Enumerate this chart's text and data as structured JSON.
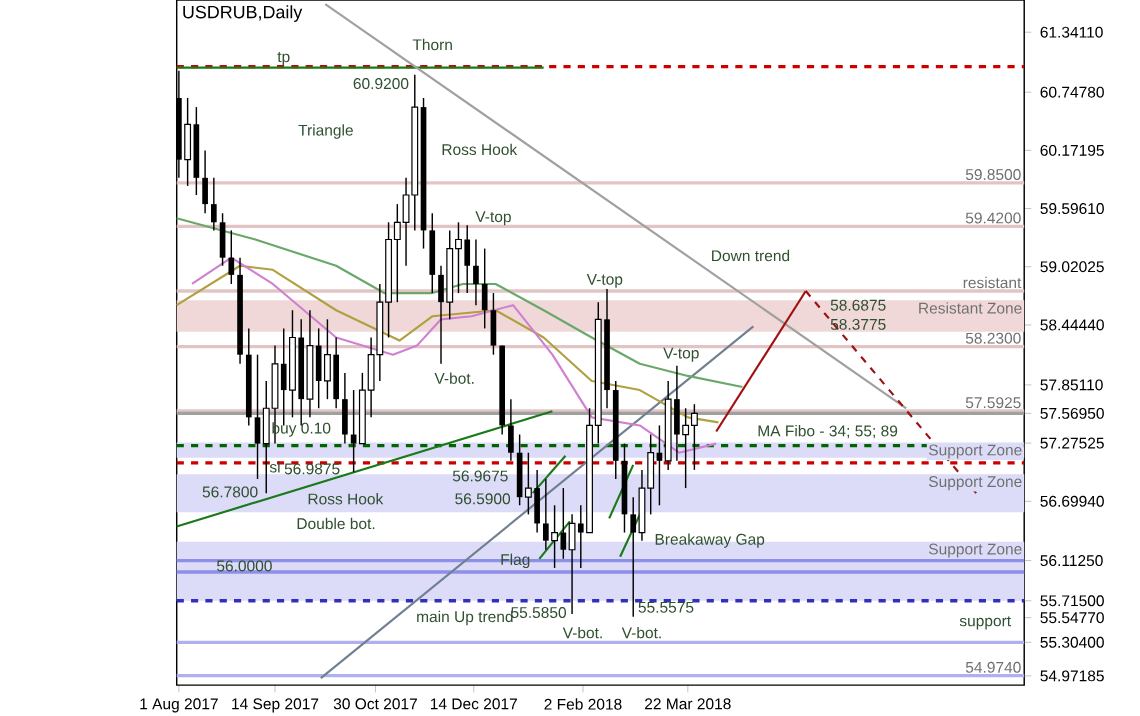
{
  "chart_data": {
    "type": "candlestick",
    "title": "USDRUB,Daily",
    "color": "#000000",
    "x": [
      "2017-08-01",
      "2017-08-05",
      "2017-08-09",
      "2017-08-13",
      "2017-08-17",
      "2017-08-21",
      "2017-08-25",
      "2017-08-29",
      "2017-09-02",
      "2017-09-06",
      "2017-09-10",
      "2017-09-14",
      "2017-09-18",
      "2017-09-22",
      "2017-09-26",
      "2017-09-30",
      "2017-10-04",
      "2017-10-08",
      "2017-10-12",
      "2017-10-16",
      "2017-10-20",
      "2017-10-24",
      "2017-10-28",
      "2017-11-01",
      "2017-11-05",
      "2017-11-09",
      "2017-11-13",
      "2017-11-17",
      "2017-11-21",
      "2017-11-25",
      "2017-11-29",
      "2017-12-03",
      "2017-12-07",
      "2017-12-11",
      "2017-12-15",
      "2017-12-19",
      "2017-12-23",
      "2017-12-27",
      "2017-12-31",
      "2018-01-04",
      "2018-01-08",
      "2018-01-12",
      "2018-01-16",
      "2018-01-20",
      "2018-01-24",
      "2018-01-28",
      "2018-02-01",
      "2018-02-05",
      "2018-02-09",
      "2018-02-13",
      "2018-02-17",
      "2018-02-21",
      "2018-02-25",
      "2018-03-01",
      "2018-03-05",
      "2018-03-09",
      "2018-03-13",
      "2018-03-17",
      "2018-03-21",
      "2018-03-25"
    ],
    "ohlc": [
      [
        60.69,
        60.96,
        59.9,
        60.08
      ],
      [
        60.08,
        60.69,
        59.82,
        60.43
      ],
      [
        60.43,
        60.6,
        59.73,
        59.9
      ],
      [
        59.9,
        60.17,
        59.55,
        59.64
      ],
      [
        59.64,
        59.9,
        59.38,
        59.46
      ],
      [
        59.46,
        59.55,
        59.03,
        59.11
      ],
      [
        59.11,
        59.38,
        58.85,
        58.94
      ],
      [
        58.94,
        59.11,
        58.06,
        58.15
      ],
      [
        58.15,
        58.41,
        57.45,
        57.53
      ],
      [
        57.53,
        58.15,
        56.92,
        57.27
      ],
      [
        57.27,
        57.89,
        56.78,
        57.62
      ],
      [
        57.62,
        58.24,
        57.27,
        58.06
      ],
      [
        58.06,
        58.41,
        57.45,
        57.8
      ],
      [
        57.8,
        58.59,
        57.53,
        58.32
      ],
      [
        58.32,
        58.5,
        57.45,
        57.71
      ],
      [
        57.71,
        58.59,
        57.53,
        58.24
      ],
      [
        58.24,
        58.41,
        57.62,
        57.89
      ],
      [
        57.89,
        58.5,
        57.71,
        58.15
      ],
      [
        58.15,
        58.32,
        57.62,
        57.71
      ],
      [
        57.71,
        57.97,
        57.27,
        57.36
      ],
      [
        57.36,
        57.8,
        56.9875,
        57.27
      ],
      [
        57.27,
        57.97,
        57.27,
        57.8
      ],
      [
        57.8,
        58.32,
        57.53,
        58.15
      ],
      [
        58.15,
        58.85,
        57.89,
        58.67
      ],
      [
        58.67,
        59.46,
        58.32,
        59.29
      ],
      [
        59.29,
        59.64,
        58.67,
        59.46
      ],
      [
        59.46,
        59.9,
        59.03,
        59.73
      ],
      [
        59.73,
        60.92,
        59.38,
        60.6
      ],
      [
        60.6,
        60.69,
        59.2,
        59.38
      ],
      [
        59.38,
        59.55,
        58.76,
        58.94
      ],
      [
        58.94,
        59.03,
        58.06,
        58.67
      ],
      [
        58.67,
        59.38,
        58.5,
        59.2
      ],
      [
        59.2,
        59.46,
        58.76,
        59.29
      ],
      [
        59.29,
        59.43,
        58.76,
        59.03
      ],
      [
        59.03,
        59.29,
        58.64,
        58.85
      ],
      [
        58.85,
        59.2,
        58.41,
        58.59
      ],
      [
        58.59,
        58.76,
        58.15,
        58.24
      ],
      [
        58.24,
        58.24,
        57.36,
        57.45
      ],
      [
        57.45,
        57.71,
        57.1,
        57.18
      ],
      [
        57.18,
        57.36,
        56.66,
        56.74
      ],
      [
        56.74,
        57.18,
        56.57,
        56.83
      ],
      [
        56.83,
        57.01,
        56.39,
        56.48
      ],
      [
        56.48,
        56.92,
        56.22,
        56.31
      ],
      [
        56.31,
        56.66,
        56.04,
        56.39
      ],
      [
        56.39,
        56.83,
        56.13,
        56.22
      ],
      [
        56.22,
        56.57,
        55.585,
        56.48
      ],
      [
        56.48,
        56.66,
        56.04,
        56.39
      ],
      [
        56.39,
        57.62,
        56.39,
        57.45
      ],
      [
        57.45,
        58.67,
        57.27,
        58.5
      ],
      [
        58.5,
        58.8,
        57.62,
        57.8
      ],
      [
        57.8,
        57.89,
        56.92,
        57.1
      ],
      [
        57.1,
        57.27,
        56.39,
        56.57
      ],
      [
        56.57,
        56.74,
        55.5575,
        56.39
      ],
      [
        56.39,
        57.01,
        56.31,
        56.83
      ],
      [
        56.83,
        57.36,
        56.57,
        57.18
      ],
      [
        57.18,
        57.45,
        56.66,
        57.1
      ],
      [
        57.1,
        57.89,
        57.01,
        57.71
      ],
      [
        57.71,
        58.04,
        57.1,
        57.36
      ],
      [
        57.36,
        57.62,
        56.83,
        57.45
      ],
      [
        57.45,
        57.66,
        57.01,
        57.57
      ]
    ],
    "xlim": [
      "2017-07-31",
      "2018-08-23"
    ],
    "xticks": [
      {
        "value": "2017-08-01",
        "label": "1 Aug 2017"
      },
      {
        "value": "2017-09-14",
        "label": "14 Sep 2017"
      },
      {
        "value": "2017-10-30",
        "label": "30 Oct 2017"
      },
      {
        "value": "2017-12-14",
        "label": "14 Dec 2017"
      },
      {
        "value": "2018-02-02",
        "label": "2 Feb 2018"
      },
      {
        "value": "2018-03-22",
        "label": "22 Mar 2018"
      }
    ],
    "ylim": [
      54.88,
      61.66
    ],
    "yticks": [
      {
        "value": 61.3411,
        "label": "61.34110"
      },
      {
        "value": 60.7478,
        "label": "60.74780"
      },
      {
        "value": 60.17195,
        "label": "60.17195"
      },
      {
        "value": 59.5961,
        "label": "59.59610"
      },
      {
        "value": 59.02025,
        "label": "59.02025"
      },
      {
        "value": 58.4444,
        "label": "58.44440"
      },
      {
        "value": 57.8511,
        "label": "57.85110"
      },
      {
        "value": 57.5695,
        "label": "57.56950"
      },
      {
        "value": 57.27525,
        "label": "57.27525"
      },
      {
        "value": 56.6994,
        "label": "56.69940"
      },
      {
        "value": 56.1125,
        "label": "56.11250"
      },
      {
        "value": 55.715,
        "label": "55.71500"
      },
      {
        "value": 55.5477,
        "label": "55.54770"
      },
      {
        "value": 55.304,
        "label": "55.30400"
      },
      {
        "value": 54.97185,
        "label": "54.97185"
      }
    ],
    "series": [
      {
        "type": "line",
        "x": [
          "2017-07-31",
          "2018-01-15"
        ],
        "values": [
          60.99,
          60.99
        ],
        "color": "#1a7a1a"
      },
      {
        "type": "line",
        "x": [
          "2017-10-07",
          "2018-06-30"
        ],
        "values": [
          61.62,
          57.62
        ],
        "color": "#a0a0a0"
      },
      {
        "type": "line",
        "x": [
          "2017-10-05",
          "2018-04-21"
        ],
        "values": [
          54.95,
          58.43
        ],
        "color": "#708090"
      },
      {
        "type": "line",
        "x": [
          "2017-07-31",
          "2018-01-19"
        ],
        "values": [
          56.45,
          57.59
        ],
        "color": "#1a7a1a"
      },
      {
        "type": "line",
        "x": [
          "2018-01-10",
          "2018-01-25"
        ],
        "values": [
          56.78,
          57.15
        ],
        "color": "#1a7a1a"
      },
      {
        "type": "line",
        "x": [
          "2018-01-13",
          "2018-01-27"
        ],
        "values": [
          56.13,
          56.5
        ],
        "color": "#1a7a1a"
      },
      {
        "type": "line",
        "x": [
          "2018-02-14",
          "2018-02-25"
        ],
        "values": [
          56.53,
          57.06
        ],
        "color": "#1a7a1a"
      },
      {
        "type": "line",
        "x": [
          "2018-02-19",
          "2018-03-02"
        ],
        "values": [
          56.15,
          56.66
        ],
        "color": "#1a7a1a"
      },
      {
        "type": "line",
        "x": [
          "2018-04-04",
          "2018-05-15"
        ],
        "values": [
          57.39,
          58.78
        ],
        "color": "#a01010"
      },
      {
        "type": "line",
        "x": [
          "2018-05-15",
          "2018-08-01"
        ],
        "values": [
          58.78,
          56.78
        ],
        "color": "#a01010",
        "line_style": "dashed"
      },
      {
        "type": "line",
        "x": [
          "2017-07-31",
          "2017-09-05",
          "2017-10-12",
          "2017-11-03",
          "2017-11-25",
          "2017-12-09",
          "2017-12-24",
          "2018-01-15",
          "2018-02-06",
          "2018-02-28",
          "2018-03-22",
          "2018-04-16"
        ],
        "values": [
          59.5,
          59.29,
          59.03,
          58.76,
          58.76,
          58.85,
          58.85,
          58.59,
          58.32,
          58.06,
          57.94,
          57.83
        ],
        "color": "#6aa86a"
      },
      {
        "type": "line",
        "x": [
          "2017-07-31",
          "2017-08-29",
          "2017-09-13",
          "2017-10-12",
          "2017-11-10",
          "2017-11-25",
          "2017-12-24",
          "2018-01-15",
          "2018-02-06",
          "2018-02-28",
          "2018-03-22",
          "2018-04-05"
        ],
        "values": [
          58.64,
          59.03,
          58.99,
          58.59,
          58.29,
          58.53,
          58.59,
          58.32,
          57.89,
          57.8,
          57.53,
          57.48
        ],
        "color": "#b0a040"
      },
      {
        "type": "line",
        "x": [
          "2017-08-07",
          "2017-08-25",
          "2017-09-13",
          "2017-10-12",
          "2017-11-07",
          "2017-11-18",
          "2017-11-29",
          "2017-12-13",
          "2018-01-01",
          "2018-01-19",
          "2018-02-06",
          "2018-02-28",
          "2018-03-18",
          "2018-04-04"
        ],
        "values": [
          58.85,
          59.11,
          58.85,
          58.32,
          58.15,
          58.24,
          58.5,
          58.53,
          58.64,
          58.15,
          57.53,
          57.45,
          57.18,
          57.27
        ],
        "color": "#d080d0"
      }
    ],
    "bands": [
      {
        "axis": "y",
        "from": 58.3775,
        "to": 58.6875,
        "label": "Resistant Zone",
        "color": "#f0d8d8"
      },
      {
        "axis": "y",
        "from": 57.13,
        "to": 57.28,
        "label": "Support Zone",
        "color": "#dcdcf8"
      },
      {
        "axis": "y",
        "from": 56.59,
        "to": 56.9675,
        "label": "Support Zone",
        "color": "#dcdcf8"
      },
      {
        "axis": "y",
        "from": 55.715,
        "to": 56.3,
        "label": "Support Zone",
        "color": "#dcdcf8"
      }
    ],
    "ref_lines": [
      {
        "axis": "y",
        "value": 61.0,
        "color": "#cc0000",
        "line_style": "dashed"
      },
      {
        "axis": "y",
        "value": 59.85,
        "label": "59.8500",
        "color": "#e3c4c4"
      },
      {
        "axis": "y",
        "value": 59.42,
        "label": "59.4200",
        "color": "#e3c4c4"
      },
      {
        "axis": "y",
        "value": 58.78,
        "label": "resistant",
        "color": "#e3c4c4"
      },
      {
        "axis": "y",
        "value": 58.23,
        "label": "58.2300",
        "color": "#e3c4c4"
      },
      {
        "axis": "y",
        "value": 57.5925,
        "label": "57.5925",
        "color": "#e3c4c4"
      },
      {
        "axis": "y",
        "value": 57.5695,
        "color": "#a0a0a0"
      },
      {
        "axis": "y",
        "value": 57.25,
        "color": "#006400",
        "line_style": "dashed"
      },
      {
        "axis": "y",
        "value": 57.08,
        "color": "#cc0000",
        "line_style": "dashed"
      },
      {
        "axis": "y",
        "value": 56.1125,
        "color": "#8f8fe8"
      },
      {
        "axis": "y",
        "value": 56.0,
        "color": "#8f8fe8"
      },
      {
        "axis": "y",
        "value": 55.715,
        "color": "#3030c0",
        "line_style": "dashed"
      },
      {
        "axis": "y",
        "value": 55.304,
        "color": "#b0b0f0"
      },
      {
        "axis": "y",
        "value": 54.974,
        "label": "54.9740",
        "color": "#b0b0f0"
      }
    ],
    "annotations": [
      "Thorn",
      "Triangle",
      "60.9200",
      "Ross Hook",
      {
        "text": "V-top",
        "x": "2017-12-23",
        "y": 59.5
      },
      "V-bot.",
      {
        "text": "V-top",
        "x": "2018-02-12",
        "y": 58.88
      },
      "Down trend",
      {
        "text": "V-top",
        "x": "2018-03-19",
        "y": 58.15
      },
      {
        "text": "58.6875",
        "x": "2018-06-08",
        "y": 58.64
      },
      {
        "text": "58.3775",
        "x": "2018-06-08",
        "y": 58.45
      },
      "MA Fibo - 34; 55; 89",
      {
        "text": "tp",
        "x": "2017-09-18",
        "y": 61.08
      },
      {
        "text": "buy 0.10",
        "x": "2017-09-26",
        "y": 57.41
      },
      {
        "text": "sl",
        "x": "2017-09-14",
        "y": 57.04
      },
      "56.7800",
      {
        "text": "56.9875",
        "x": "2017-10-01",
        "y": 57.02
      },
      {
        "text": "56.9675",
        "x": "2017-12-17",
        "y": 56.95
      },
      "56.5900",
      "Ross Hook",
      "Double bot.",
      {
        "text": "56.0000",
        "x": "2017-08-31",
        "y": 56.06
      },
      {
        "text": "Flag",
        "x": "2018-01-02",
        "y": 56.11
      },
      "main Up trend",
      "55.5850",
      {
        "text": "V-bot.",
        "x": "2018-02-02",
        "y": 55.4
      },
      {
        "text": "55.5575",
        "x": "2018-03-12",
        "y": 55.65
      },
      {
        "text": "V-bot.",
        "x": "2018-03-01",
        "y": 55.4
      },
      {
        "text": "Breakaway Gap",
        "x": "2018-04-01",
        "y": 56.31
      },
      "support"
    ]
  }
}
